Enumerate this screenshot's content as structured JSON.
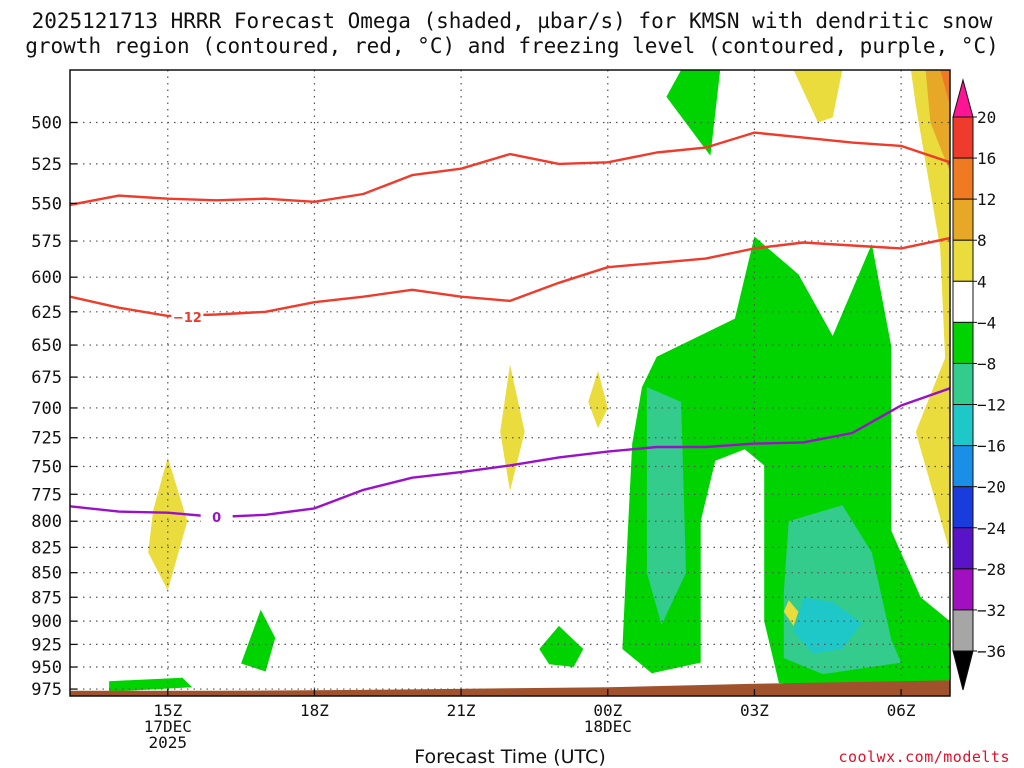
{
  "title_line1": "2025121713 HRRR Forecast Omega (shaded, µbar/s) for KMSN with dendritic snow",
  "title_line2": "growth region (contoured, red, °C) and freezing level (contoured, purple, °C)",
  "credit": "coolwx.com/modelts",
  "colors": {
    "temp_line": "#ef3b2c",
    "freezing_line": "#9a12c8",
    "ground": "#a0522d",
    "grid": "#555555"
  },
  "chart_data": {
    "type": "heatmap",
    "title": "2025121713 HRRR Forecast Omega (shaded, µbar/s) for KMSN with dendritic snow growth region (contoured, red, °C) and freezing level (contoured, purple, °C)",
    "xlabel": "Forecast Time (UTC)",
    "ylabel": "",
    "x_range_hours": [
      13,
      31
    ],
    "y_range_hpa": [
      983,
      470
    ],
    "y_scale": "log-pressure (inverted)",
    "grid": true,
    "x_ticks": [
      {
        "hour": 15,
        "lines": [
          "15Z",
          "17DEC",
          "2025"
        ]
      },
      {
        "hour": 18,
        "lines": [
          "18Z"
        ]
      },
      {
        "hour": 21,
        "lines": [
          "21Z"
        ]
      },
      {
        "hour": 24,
        "lines": [
          "00Z",
          "18DEC"
        ]
      },
      {
        "hour": 27,
        "lines": [
          "03Z"
        ]
      },
      {
        "hour": 30,
        "lines": [
          "06Z"
        ]
      }
    ],
    "y_ticks": [
      500,
      525,
      550,
      575,
      600,
      625,
      650,
      675,
      700,
      725,
      750,
      775,
      800,
      825,
      850,
      875,
      900,
      925,
      950,
      975
    ],
    "colorbar": {
      "labels": [
        "20",
        "16",
        "12",
        "8",
        "4",
        "−4",
        "−8",
        "−12",
        "−16",
        "−20",
        "−24",
        "−28",
        "−32",
        "−36"
      ],
      "bins": [
        {
          "color": "#ff1493"
        },
        {
          "color": "#ef3b2c"
        },
        {
          "color": "#f07a22"
        },
        {
          "color": "#e8a827"
        },
        {
          "color": "#eadc3c"
        },
        {
          "color": "#ffffff"
        },
        {
          "color": "#00d400"
        },
        {
          "color": "#33cc8c"
        },
        {
          "color": "#1ec8c8"
        },
        {
          "color": "#1a8fe8"
        },
        {
          "color": "#1a3cdc"
        },
        {
          "color": "#5a14c8"
        },
        {
          "color": "#a010c0"
        },
        {
          "color": "#a6a6a6"
        },
        {
          "color": "#000000"
        }
      ]
    },
    "series": [
      {
        "kind": "contour",
        "level": -12,
        "label": "−12",
        "label_at": [
          15.4,
          629
        ],
        "points": [
          [
            13,
            614
          ],
          [
            14,
            622
          ],
          [
            15,
            628
          ],
          [
            16,
            627
          ],
          [
            17,
            625
          ],
          [
            18,
            618
          ],
          [
            19,
            614
          ],
          [
            20,
            609
          ],
          [
            21,
            614
          ],
          [
            22,
            617
          ],
          [
            23,
            604
          ],
          [
            24,
            593
          ],
          [
            25,
            590
          ],
          [
            26,
            587
          ],
          [
            27,
            580
          ],
          [
            28,
            576
          ],
          [
            29,
            578
          ],
          [
            30,
            580
          ],
          [
            31,
            573
          ]
        ]
      },
      {
        "kind": "contour",
        "level": -12,
        "label": "",
        "points": [
          [
            13,
            551
          ],
          [
            14,
            545
          ],
          [
            15,
            547
          ],
          [
            16,
            548
          ],
          [
            17,
            547
          ],
          [
            18,
            549
          ],
          [
            19,
            544
          ],
          [
            20,
            532
          ],
          [
            21,
            528
          ],
          [
            22,
            519
          ],
          [
            23,
            525
          ],
          [
            24,
            524
          ],
          [
            25,
            518
          ],
          [
            26,
            515
          ],
          [
            27,
            506
          ],
          [
            28,
            509
          ],
          [
            29,
            512
          ],
          [
            30,
            514
          ],
          [
            31,
            524
          ]
        ]
      },
      {
        "kind": "freezing",
        "level": 0,
        "label": "0",
        "label_at": [
          16.0,
          796
        ],
        "points": [
          [
            13,
            786
          ],
          [
            14,
            791
          ],
          [
            15,
            792
          ],
          [
            16,
            796
          ],
          [
            17,
            794
          ],
          [
            18,
            788
          ],
          [
            19,
            771
          ],
          [
            20,
            760
          ],
          [
            21,
            755
          ],
          [
            22,
            749
          ],
          [
            23,
            742
          ],
          [
            24,
            737
          ],
          [
            25,
            733
          ],
          [
            26,
            733
          ],
          [
            27,
            730
          ],
          [
            28,
            729
          ],
          [
            29,
            721
          ],
          [
            30,
            698
          ],
          [
            31,
            684
          ]
        ]
      }
    ],
    "shaded_regions": [
      {
        "level": "-4",
        "color": "#00d400",
        "points": [
          [
            24.7,
            683
          ],
          [
            25.0,
            659
          ],
          [
            26.6,
            630
          ],
          [
            27.0,
            572
          ],
          [
            27.9,
            598
          ],
          [
            28.6,
            643
          ],
          [
            29.4,
            577
          ],
          [
            29.8,
            651
          ],
          [
            29.8,
            809
          ],
          [
            30.4,
            875
          ],
          [
            31,
            900
          ],
          [
            31,
            965
          ],
          [
            28.5,
            973
          ],
          [
            27.5,
            968
          ],
          [
            27.2,
            900
          ],
          [
            27.2,
            749
          ],
          [
            26.8,
            735
          ],
          [
            26.2,
            745
          ],
          [
            25.9,
            800
          ],
          [
            25.9,
            945
          ],
          [
            24.9,
            957
          ],
          [
            24.3,
            930
          ],
          [
            24.4,
            820
          ],
          [
            24.5,
            730
          ]
        ]
      },
      {
        "level": "-8",
        "color": "#33cc8c",
        "points": [
          [
            24.8,
            683
          ],
          [
            25.5,
            695
          ],
          [
            25.6,
            850
          ],
          [
            25.1,
            904
          ],
          [
            24.8,
            850
          ],
          [
            24.8,
            760
          ]
        ]
      },
      {
        "level": "-8",
        "color": "#33cc8c",
        "points": [
          [
            27.7,
            800
          ],
          [
            28.8,
            785
          ],
          [
            29.4,
            830
          ],
          [
            29.8,
            920
          ],
          [
            30.0,
            945
          ],
          [
            28.4,
            958
          ],
          [
            27.6,
            940
          ],
          [
            27.6,
            870
          ]
        ]
      },
      {
        "level": "-12",
        "color": "#1ec8c8",
        "points": [
          [
            28.0,
            875
          ],
          [
            28.6,
            880
          ],
          [
            29.2,
            902
          ],
          [
            28.8,
            930
          ],
          [
            28.2,
            935
          ],
          [
            27.8,
            912
          ]
        ]
      },
      {
        "level": "-4",
        "color": "#00d400",
        "points": [
          [
            16.9,
            888
          ],
          [
            17.2,
            918
          ],
          [
            17.0,
            955
          ],
          [
            16.5,
            946
          ]
        ]
      },
      {
        "level": "-4",
        "color": "#00d400",
        "points": [
          [
            23.0,
            905
          ],
          [
            23.5,
            930
          ],
          [
            23.3,
            950
          ],
          [
            22.8,
            947
          ],
          [
            22.6,
            930
          ]
        ]
      },
      {
        "level": "-4",
        "color": "#00d400",
        "points": [
          [
            13.8,
            966
          ],
          [
            15.3,
            962
          ],
          [
            15.5,
            973
          ],
          [
            13.8,
            978
          ]
        ]
      },
      {
        "level": "-4",
        "color": "#00d400",
        "points": [
          [
            25.5,
            470
          ],
          [
            26.3,
            470
          ],
          [
            26.1,
            520
          ],
          [
            25.2,
            485
          ]
        ]
      },
      {
        "level": "4",
        "color": "#eadc3c",
        "points": [
          [
            15.0,
            742
          ],
          [
            15.4,
            800
          ],
          [
            15.0,
            868
          ],
          [
            14.6,
            830
          ],
          [
            14.7,
            790
          ]
        ]
      },
      {
        "level": "4",
        "color": "#eadc3c",
        "points": [
          [
            22.0,
            665
          ],
          [
            22.3,
            720
          ],
          [
            22.0,
            772
          ],
          [
            21.8,
            720
          ]
        ]
      },
      {
        "level": "4",
        "color": "#eadc3c",
        "points": [
          [
            23.8,
            670
          ],
          [
            24.0,
            700
          ],
          [
            23.8,
            717
          ],
          [
            23.6,
            695
          ]
        ]
      },
      {
        "level": "4",
        "color": "#eadc3c",
        "points": [
          [
            27.8,
            470
          ],
          [
            28.8,
            470
          ],
          [
            28.6,
            497
          ],
          [
            28.3,
            500
          ]
        ]
      },
      {
        "level": "4",
        "color": "#eadc3c",
        "points": [
          [
            27.7,
            878
          ],
          [
            27.9,
            890
          ],
          [
            27.8,
            905
          ],
          [
            27.6,
            890
          ]
        ]
      },
      {
        "level": "4",
        "color": "#eadc3c",
        "points": [
          [
            30.2,
            470
          ],
          [
            31,
            470
          ],
          [
            31,
            830
          ],
          [
            30.3,
            720
          ],
          [
            30.9,
            660
          ],
          [
            30.8,
            580
          ],
          [
            30.3,
            490
          ]
        ]
      },
      {
        "level": "8",
        "color": "#e8a827",
        "points": [
          [
            30.5,
            470
          ],
          [
            31,
            470
          ],
          [
            31,
            530
          ],
          [
            30.6,
            500
          ]
        ]
      },
      {
        "level": "12",
        "color": "#f07a22",
        "points": [
          [
            30.8,
            470
          ],
          [
            31,
            470
          ],
          [
            31,
            490
          ]
        ]
      }
    ],
    "ground": {
      "color": "#a0522d",
      "points": [
        [
          13,
          977
        ],
        [
          16,
          977
        ],
        [
          19,
          976
        ],
        [
          22,
          974
        ],
        [
          24,
          973
        ],
        [
          27,
          969
        ],
        [
          30,
          966
        ],
        [
          31,
          965
        ]
      ]
    }
  }
}
